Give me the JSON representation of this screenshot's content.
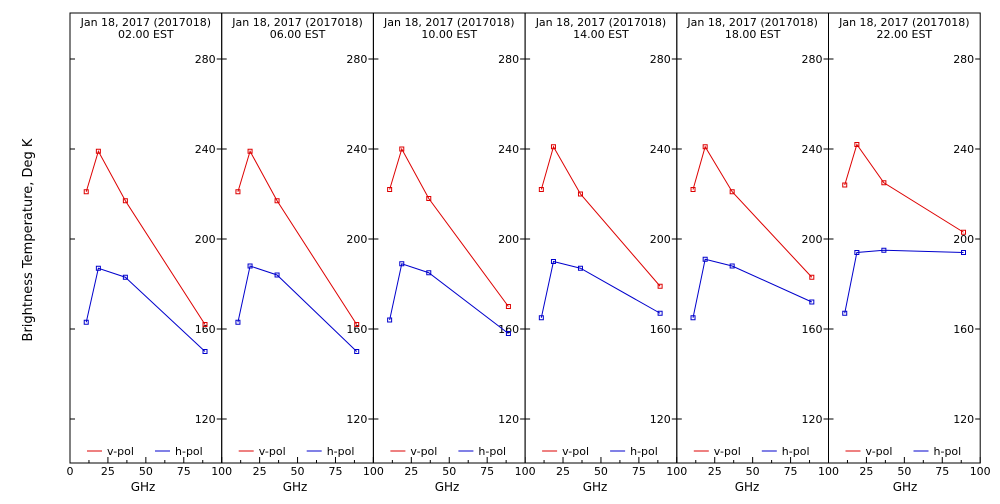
{
  "ylabel": "Brightness Temperature, Deg K",
  "xlabel": "GHz",
  "y_ticks": [
    "120",
    "160",
    "200",
    "240",
    "280"
  ],
  "x_ticks": [
    "0",
    "25",
    "50",
    "75",
    "100"
  ],
  "legend": {
    "vpol": "v-pol",
    "hpol": "h-pol"
  },
  "colors": {
    "vpol": "#dd0000",
    "hpol": "#0000cc",
    "axis": "#000000"
  },
  "chart_data": {
    "type": "line",
    "xlabel": "GHz",
    "ylabel": "Brightness Temperature, Deg K",
    "xlim": [
      0,
      100
    ],
    "ylim": [
      100,
      295
    ],
    "grid": false,
    "legend_position": "bottom",
    "x": [
      10.7,
      18.7,
      36.5,
      89.0
    ],
    "panels": [
      {
        "title": "Jan 18, 2017 (2017018)",
        "subtitle": "02.00 EST",
        "series": [
          {
            "name": "v-pol",
            "values": [
              221,
              239,
              217,
              162
            ]
          },
          {
            "name": "h-pol",
            "values": [
              163,
              187,
              183,
              150
            ]
          }
        ]
      },
      {
        "title": "Jan 18, 2017 (2017018)",
        "subtitle": "06.00 EST",
        "series": [
          {
            "name": "v-pol",
            "values": [
              221,
              239,
              217,
              162
            ]
          },
          {
            "name": "h-pol",
            "values": [
              163,
              188,
              184,
              150
            ]
          }
        ]
      },
      {
        "title": "Jan 18, 2017 (2017018)",
        "subtitle": "10.00 EST",
        "series": [
          {
            "name": "v-pol",
            "values": [
              222,
              240,
              218,
              170
            ]
          },
          {
            "name": "h-pol",
            "values": [
              164,
              189,
              185,
              158
            ]
          }
        ]
      },
      {
        "title": "Jan 18, 2017 (2017018)",
        "subtitle": "14.00 EST",
        "series": [
          {
            "name": "v-pol",
            "values": [
              222,
              241,
              220,
              179
            ]
          },
          {
            "name": "h-pol",
            "values": [
              165,
              190,
              187,
              167
            ]
          }
        ]
      },
      {
        "title": "Jan 18, 2017 (2017018)",
        "subtitle": "18.00 EST",
        "series": [
          {
            "name": "v-pol",
            "values": [
              222,
              241,
              221,
              183
            ]
          },
          {
            "name": "h-pol",
            "values": [
              165,
              191,
              188,
              172
            ]
          }
        ]
      },
      {
        "title": "Jan 18, 2017 (2017018)",
        "subtitle": "22.00 EST",
        "series": [
          {
            "name": "v-pol",
            "values": [
              224,
              242,
              225,
              203
            ]
          },
          {
            "name": "h-pol",
            "values": [
              167,
              194,
              195,
              194
            ]
          }
        ]
      }
    ]
  }
}
